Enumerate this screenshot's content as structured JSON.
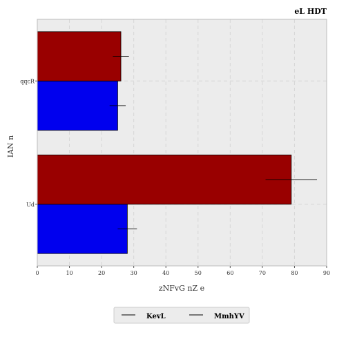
{
  "chart_data": {
    "type": "bar",
    "orientation": "horizontal",
    "title": "eL  HDT",
    "xlabel": "zNFvG nZ e",
    "ylabel": "IAN  n",
    "categories": [
      "Ud",
      "qqcR"
    ],
    "xlim": [
      0,
      90
    ],
    "xticks": [
      "0",
      "10",
      "20",
      "30",
      "40",
      "50",
      "60",
      "70",
      "80",
      "90"
    ],
    "grid": true,
    "legend_position": "bottom-center",
    "series": [
      {
        "name": "KevL",
        "color": "#0000ee",
        "values": [
          28,
          25
        ],
        "errors": [
          3,
          2.5
        ]
      },
      {
        "name": "MmhYV",
        "color": "#990000",
        "values": [
          79,
          26
        ],
        "errors": [
          8,
          2.5
        ]
      }
    ]
  }
}
